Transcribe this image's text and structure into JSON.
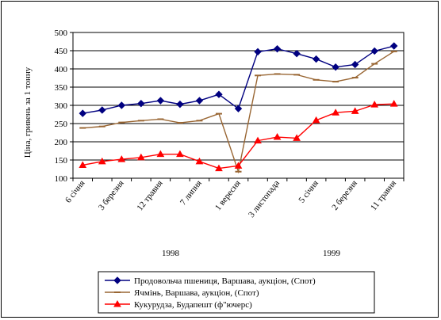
{
  "chart_data": {
    "type": "line",
    "ylabel": "Ціна, гривень за 1 тонну",
    "ylim": [
      100,
      500
    ],
    "yticks": [
      100,
      150,
      200,
      250,
      300,
      350,
      400,
      450,
      500
    ],
    "grid": true,
    "x_tick_labels": [
      "6 січня",
      "3 березня",
      "12 травня",
      "7 липня",
      "1 вересня",
      "3 листопада",
      "5 січня",
      "2 березня",
      "11 травня"
    ],
    "year_labels": [
      "1998",
      "1999"
    ],
    "legend_position": "bottom",
    "series": [
      {
        "name": "Продовольча пшениця, Варшава, аукціон, (Спот)",
        "color": "#000080",
        "marker": "diamond",
        "values": [
          278,
          287,
          300,
          305,
          313,
          303,
          313,
          330,
          291,
          447,
          455,
          442,
          427,
          405,
          412,
          449,
          463
        ]
      },
      {
        "name": "Ячмінь, Варшава, аукціон, (Спот)",
        "color": "#996633",
        "marker": "dash",
        "values": [
          238,
          242,
          253,
          258,
          262,
          252,
          258,
          277,
          118,
          382,
          386,
          384,
          370,
          365,
          376,
          414,
          448
        ]
      },
      {
        "name": "Кукурудза, Будапешт (ф\"ючерс)",
        "color": "#ff0000",
        "marker": "triangle",
        "values": [
          136,
          146,
          152,
          157,
          166,
          166,
          146,
          127,
          134,
          203,
          213,
          210,
          259,
          280,
          284,
          302,
          304
        ]
      }
    ]
  }
}
